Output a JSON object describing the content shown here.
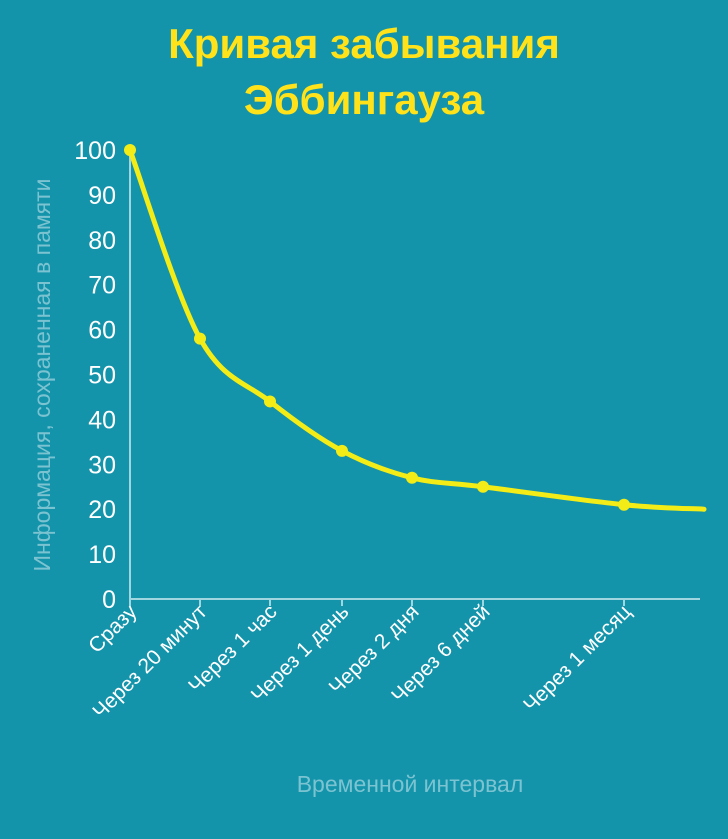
{
  "colors": {
    "background": "#1394ab",
    "title": "#ffe21a",
    "curve": "#f4ec16",
    "axis_text": "#ffffff",
    "axis_line": "#9fd6e0",
    "axis_title": "#7cc3d1"
  },
  "chart_data": {
    "type": "line",
    "title": "Кривая забывания\nЭббингауза",
    "xlabel": "Временной интервал",
    "ylabel": "Информация, сохраненная в памяти",
    "ylim": [
      0,
      100
    ],
    "yticks": [
      0,
      10,
      20,
      30,
      40,
      50,
      60,
      70,
      80,
      90,
      100
    ],
    "grid": false,
    "categories": [
      "Сразу",
      "Через 20 минут",
      "Через 1 час",
      "Через 1 день",
      "Через 2 дня",
      "Через 6 дней",
      "Через 1 месяц"
    ],
    "values": [
      100,
      58,
      44,
      33,
      27,
      25,
      21
    ],
    "curve_end_value": 20
  }
}
